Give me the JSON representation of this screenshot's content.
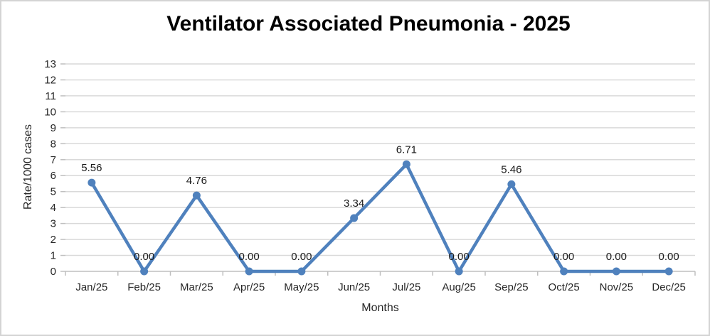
{
  "chart_data": {
    "type": "line",
    "title": "Ventilator Associated Pneumonia - 2025",
    "xlabel": "Months",
    "ylabel": "Rate/1000 cases",
    "categories": [
      "Jan/25",
      "Feb/25",
      "Mar/25",
      "Apr/25",
      "May/25",
      "Jun/25",
      "Jul/25",
      "Aug/25",
      "Sep/25",
      "Oct/25",
      "Nov/25",
      "Dec/25"
    ],
    "values": [
      5.56,
      0.0,
      4.76,
      0.0,
      0.0,
      3.34,
      6.71,
      0.0,
      5.46,
      0.0,
      0.0,
      0.0
    ],
    "data_labels": [
      "5.56",
      "0.00",
      "4.76",
      "0.00",
      "0.00",
      "3.34",
      "6.71",
      "0.00",
      "5.46",
      "0.00",
      "0.00",
      "0.00"
    ],
    "ylim": [
      0,
      13
    ],
    "ytick_step": 1,
    "grid": true,
    "legend": "none",
    "colors": {
      "line": "#4F81BD",
      "marker": "#4F81BD",
      "gridline": "#D9D9D9",
      "axis": "#BFBFBF",
      "tick_label": "#262626",
      "data_label": "#1a1a1a",
      "title": "#000000"
    }
  }
}
